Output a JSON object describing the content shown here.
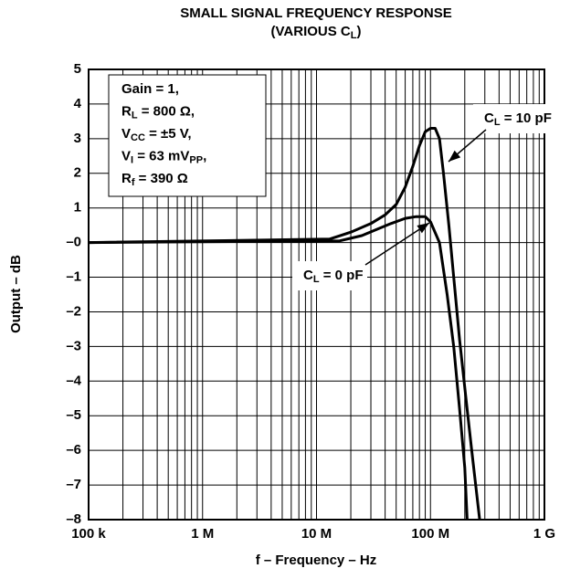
{
  "chart_data": {
    "type": "line",
    "title": "SMALL SIGNAL FREQUENCY RESPONSE",
    "subtitle": [
      {
        "text": "(VARIOUS C"
      },
      {
        "text": "L",
        "sub": true
      },
      {
        "text": ")"
      }
    ],
    "xlabel": "f – Frequency – Hz",
    "ylabel": "Output – dB",
    "xscale": "log",
    "xlim": [
      100000,
      1000000000
    ],
    "ylim": [
      -8,
      5
    ],
    "xticks": [
      {
        "value": 100000,
        "label": "100 k"
      },
      {
        "value": 1000000,
        "label": "1 M"
      },
      {
        "value": 10000000,
        "label": "10 M"
      },
      {
        "value": 100000000,
        "label": "100 M"
      },
      {
        "value": 1000000000,
        "label": "1 G"
      }
    ],
    "yticks": [
      {
        "value": -8,
        "label": "–8"
      },
      {
        "value": -7,
        "label": "–7"
      },
      {
        "value": -6,
        "label": "–6"
      },
      {
        "value": -5,
        "label": "–5"
      },
      {
        "value": -4,
        "label": "–4"
      },
      {
        "value": -3,
        "label": "–3"
      },
      {
        "value": -2,
        "label": "–2"
      },
      {
        "value": -1,
        "label": "–1"
      },
      {
        "value": 0,
        "label": "–0"
      },
      1,
      2,
      3,
      4,
      5
    ],
    "grid": true,
    "annotations": [
      [
        {
          "text": "Gain = 1,"
        }
      ],
      [
        {
          "text": "R"
        },
        {
          "text": "L",
          "sub": true
        },
        {
          "text": " = 800 Ω,"
        }
      ],
      [
        {
          "text": "V"
        },
        {
          "text": "CC",
          "sub": true
        },
        {
          "text": " = ±5 V,"
        }
      ],
      [
        {
          "text": "V"
        },
        {
          "text": "I",
          "sub": true
        },
        {
          "text": " = 63 mV"
        },
        {
          "text": "PP",
          "sub": true
        },
        {
          "text": ","
        }
      ],
      [
        {
          "text": "R"
        },
        {
          "text": "f",
          "sub": true
        },
        {
          "text": " = 390 Ω"
        }
      ]
    ],
    "series": [
      {
        "name": [
          {
            "text": "C"
          },
          {
            "text": "L",
            "sub": true
          },
          {
            "text": " = 10 pF"
          }
        ],
        "color": "#000000",
        "x": [
          100000,
          13000000,
          20000000,
          30000000,
          40000000,
          50000000,
          60000000,
          70000000,
          80000000,
          90000000,
          100000000,
          110000000,
          120000000,
          130000000,
          145000000,
          160000000,
          180000000,
          205000000,
          230000000,
          270000000
        ],
        "values": [
          0,
          0.1,
          0.3,
          0.55,
          0.8,
          1.1,
          1.6,
          2.2,
          2.8,
          3.2,
          3.3,
          3.3,
          3.0,
          2.0,
          0.5,
          -1,
          -2.8,
          -4.5,
          -6,
          -8
        ]
      },
      {
        "name": [
          {
            "text": "C"
          },
          {
            "text": "L",
            "sub": true
          },
          {
            "text": " = 0 pF"
          }
        ],
        "color": "#000000",
        "x": [
          100000,
          16000000,
          25000000,
          35000000,
          45000000,
          60000000,
          75000000,
          90000000,
          100000000,
          120000000,
          140000000,
          160000000,
          180000000,
          200000000,
          210000000
        ],
        "values": [
          0,
          0.05,
          0.2,
          0.4,
          0.55,
          0.7,
          0.75,
          0.75,
          0.6,
          0,
          -1.5,
          -3,
          -4.8,
          -6.5,
          -8
        ]
      }
    ]
  }
}
